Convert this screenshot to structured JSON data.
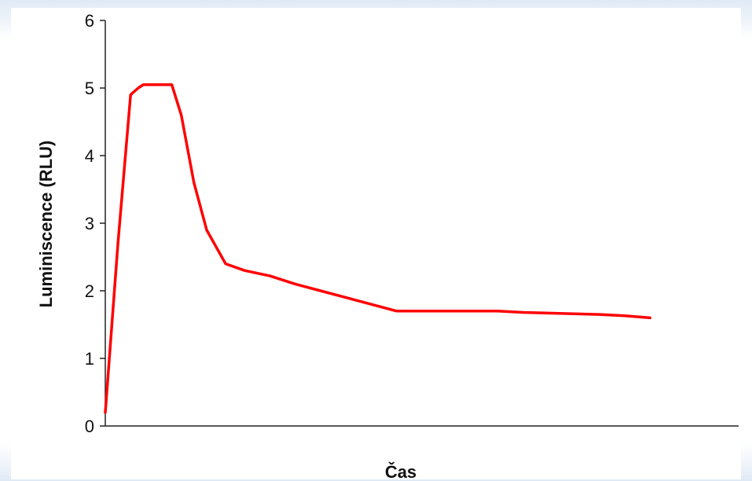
{
  "chart_data": {
    "type": "line",
    "title": "",
    "xlabel": "Čas",
    "ylabel": "Luminiscence (RLU)",
    "ylim": [
      0,
      6
    ],
    "xlim": [
      0,
      100
    ],
    "yticks": [
      "0",
      "1",
      "2",
      "3",
      "4",
      "5",
      "6"
    ],
    "grid": false,
    "legend": "none",
    "colors": {
      "line": "#ff0000",
      "axis": "#222222"
    },
    "series": [
      {
        "x": [
          0,
          2,
          4,
          5.2,
          6,
          7.5,
          10.5,
          12,
          14,
          16,
          19,
          22,
          26,
          30,
          34,
          38,
          42,
          46,
          50,
          54,
          58,
          62,
          66,
          70,
          74,
          78,
          82,
          86
        ],
        "y": [
          0.2,
          2.7,
          4.9,
          5.0,
          5.05,
          5.05,
          5.05,
          4.6,
          3.6,
          2.9,
          2.4,
          2.3,
          2.22,
          2.1,
          2.0,
          1.9,
          1.8,
          1.7,
          1.7,
          1.7,
          1.7,
          1.7,
          1.68,
          1.67,
          1.66,
          1.65,
          1.63,
          1.6
        ]
      }
    ]
  }
}
